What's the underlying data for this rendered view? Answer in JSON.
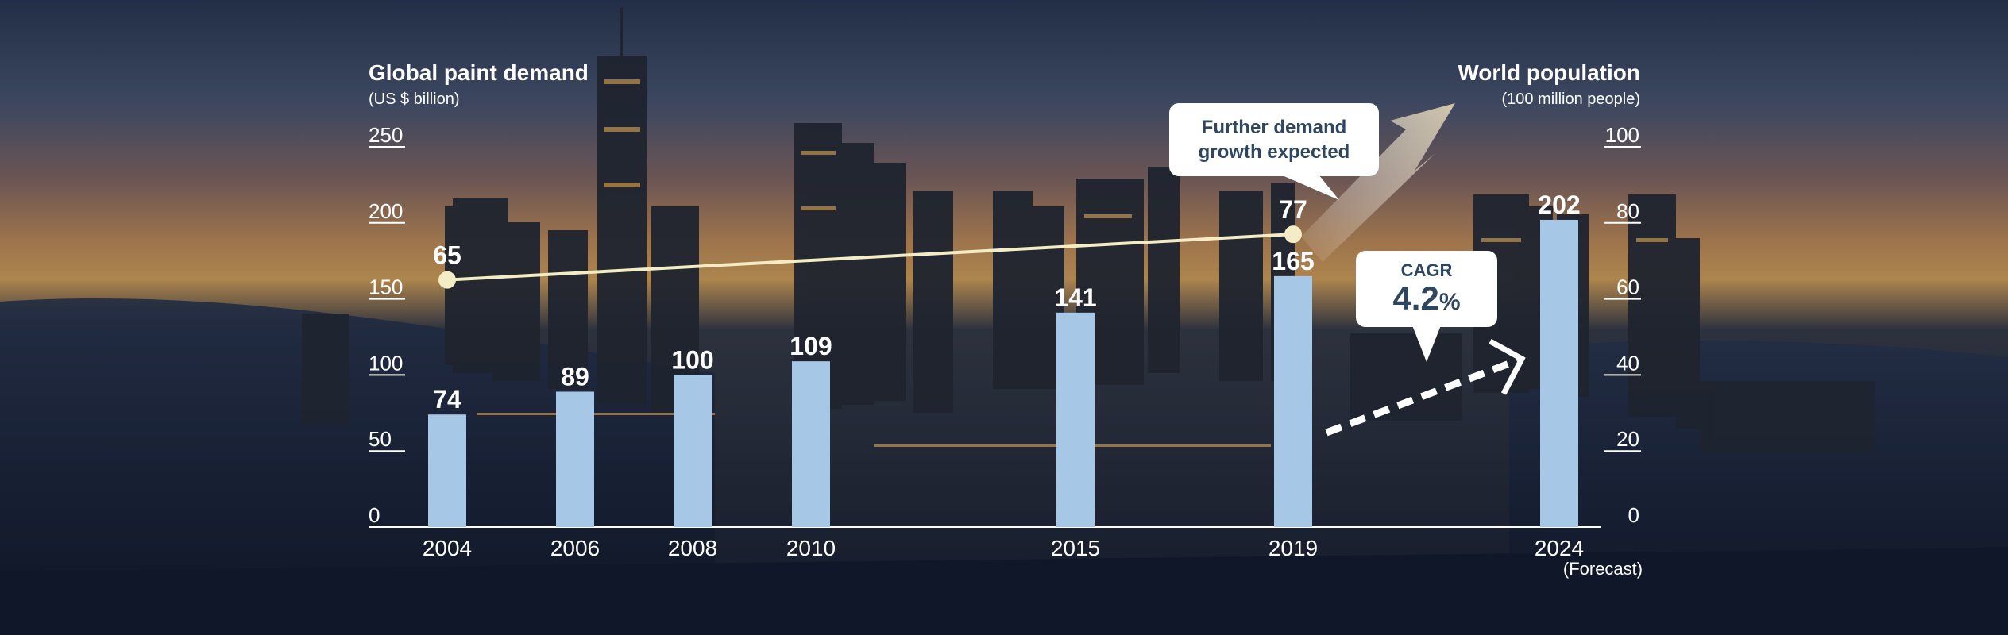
{
  "left_axis": {
    "title": "Global paint demand",
    "unit": "(US $ billion)"
  },
  "right_axis": {
    "title": "World population",
    "unit": "(100 million people)"
  },
  "callouts": {
    "demand": {
      "line1": "Further demand",
      "line2": "growth expected"
    },
    "cagr": {
      "label": "CAGR",
      "value": "4.2",
      "unit": "%"
    }
  },
  "chart_data": {
    "type": "bar",
    "title": "",
    "categories": [
      "2004",
      "2006",
      "2008",
      "2010",
      "2015",
      "2019",
      "2024"
    ],
    "category_subtitle": {
      "2024": "(Forecast)"
    },
    "series": [
      {
        "name": "Global paint demand",
        "type": "bar",
        "axis": "left",
        "values": [
          74,
          89,
          100,
          109,
          141,
          165,
          202
        ],
        "color": "#a7c7e7"
      },
      {
        "name": "World population",
        "type": "line",
        "axis": "right",
        "points": [
          {
            "x": "2004",
            "value": 65
          },
          {
            "x": "2019",
            "value": 77
          }
        ],
        "color": "#f3ecc4"
      }
    ],
    "y_left": {
      "ylim": [
        0,
        250
      ],
      "ticks": [
        "0",
        "50",
        "100",
        "150",
        "200",
        "250"
      ]
    },
    "y_right": {
      "ylim": [
        0,
        100
      ],
      "ticks": [
        "0",
        "20",
        "40",
        "60",
        "80",
        "100"
      ]
    },
    "grid": false,
    "legend": "none",
    "colors": {
      "bar": "#a7c7e7",
      "line": "#f3ecc4",
      "text": "#ffffff",
      "callout_text": "#2f4660"
    }
  }
}
